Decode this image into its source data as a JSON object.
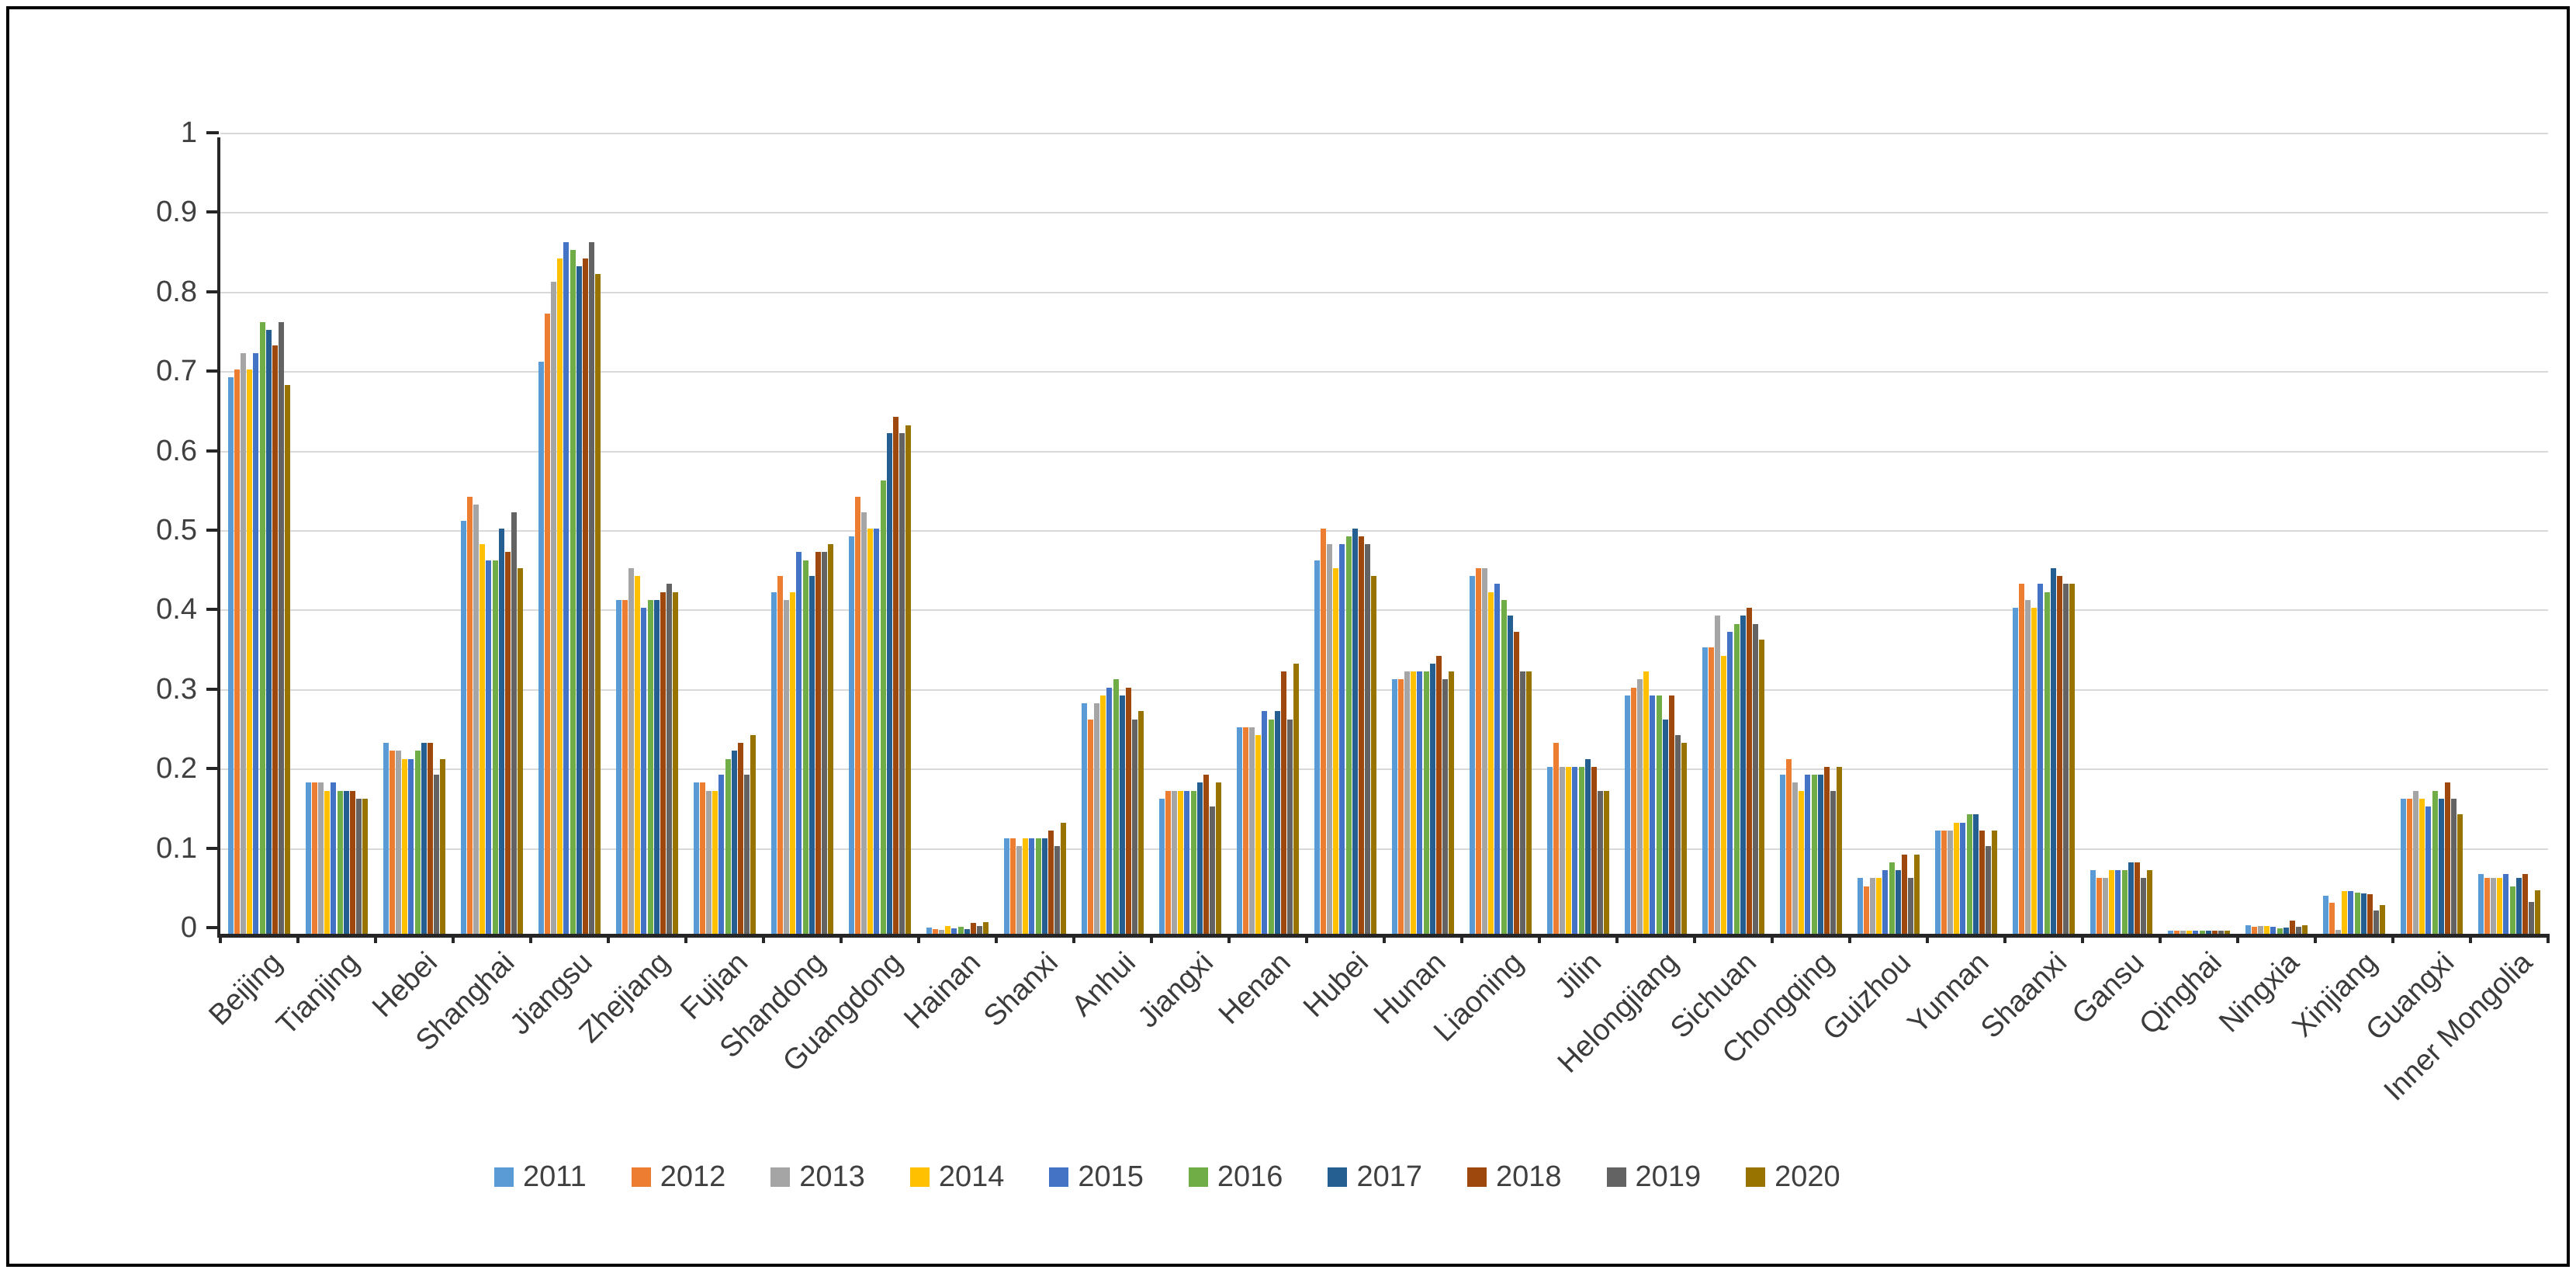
{
  "chart_data": {
    "type": "bar",
    "title": "",
    "xlabel": "",
    "ylabel": "",
    "ylim": [
      0,
      1
    ],
    "grid": true,
    "legend_position": "bottom",
    "ytick_labels": [
      "1",
      "0.9",
      "0.8",
      "0.7",
      "0.6",
      "0.5",
      "0.4",
      "0.3",
      "0.2",
      "0.1",
      "0"
    ],
    "categories": [
      "Beijing",
      "Tianjing",
      "Hebei",
      "Shanghai",
      "Jiangsu",
      "Zhejiang",
      "Fujian",
      "Shandong",
      "Guangdong",
      "Hainan",
      "Shanxi",
      "Anhui",
      "Jiangxi",
      "Henan",
      "Hubei",
      "Hunan",
      "Liaoning",
      "Jilin",
      "Helongjiang",
      "Sichuan",
      "Chongqing",
      "Guizhou",
      "Yunnan",
      "Shaanxi",
      "Gansu",
      "Qinghai",
      "Ningxia",
      "Xinjiang",
      "Guangxi",
      "Inner Mongolia"
    ],
    "series": [
      {
        "name": "2011",
        "color": "#5B9BD5",
        "values": [
          0.7,
          0.19,
          0.24,
          0.52,
          0.72,
          0.42,
          0.19,
          0.43,
          0.5,
          0.008,
          0.12,
          0.29,
          0.17,
          0.26,
          0.47,
          0.32,
          0.45,
          0.21,
          0.3,
          0.36,
          0.2,
          0.07,
          0.13,
          0.41,
          0.08,
          0.004,
          0.011,
          0.048,
          0.17,
          0.075
        ]
      },
      {
        "name": "2012",
        "color": "#ED7D31",
        "values": [
          0.71,
          0.19,
          0.23,
          0.55,
          0.78,
          0.42,
          0.19,
          0.45,
          0.55,
          0.006,
          0.12,
          0.27,
          0.18,
          0.26,
          0.51,
          0.32,
          0.46,
          0.24,
          0.31,
          0.36,
          0.22,
          0.06,
          0.13,
          0.44,
          0.07,
          0.004,
          0.009,
          0.039,
          0.17,
          0.07
        ]
      },
      {
        "name": "2013",
        "color": "#A5A5A5",
        "values": [
          0.73,
          0.19,
          0.23,
          0.54,
          0.82,
          0.46,
          0.18,
          0.42,
          0.53,
          0.005,
          0.11,
          0.29,
          0.18,
          0.26,
          0.49,
          0.33,
          0.46,
          0.21,
          0.32,
          0.4,
          0.19,
          0.07,
          0.13,
          0.42,
          0.07,
          0.004,
          0.01,
          0.005,
          0.18,
          0.07
        ]
      },
      {
        "name": "2014",
        "color": "#FFC000",
        "values": [
          0.71,
          0.18,
          0.22,
          0.49,
          0.85,
          0.45,
          0.18,
          0.43,
          0.51,
          0.01,
          0.12,
          0.3,
          0.18,
          0.25,
          0.46,
          0.33,
          0.43,
          0.21,
          0.33,
          0.35,
          0.18,
          0.07,
          0.14,
          0.41,
          0.08,
          0.004,
          0.01,
          0.054,
          0.17,
          0.07
        ]
      },
      {
        "name": "2015",
        "color": "#4472C4",
        "values": [
          0.73,
          0.19,
          0.22,
          0.47,
          0.87,
          0.41,
          0.2,
          0.48,
          0.51,
          0.007,
          0.12,
          0.31,
          0.18,
          0.28,
          0.49,
          0.33,
          0.44,
          0.21,
          0.3,
          0.38,
          0.2,
          0.08,
          0.14,
          0.44,
          0.08,
          0.004,
          0.009,
          0.054,
          0.16,
          0.075
        ]
      },
      {
        "name": "2016",
        "color": "#70AD47",
        "values": [
          0.77,
          0.18,
          0.23,
          0.47,
          0.86,
          0.42,
          0.22,
          0.47,
          0.57,
          0.009,
          0.12,
          0.32,
          0.18,
          0.27,
          0.5,
          0.33,
          0.42,
          0.21,
          0.3,
          0.39,
          0.2,
          0.09,
          0.15,
          0.43,
          0.08,
          0.004,
          0.007,
          0.052,
          0.18,
          0.06
        ]
      },
      {
        "name": "2017",
        "color": "#255E91",
        "values": [
          0.76,
          0.18,
          0.24,
          0.51,
          0.84,
          0.42,
          0.23,
          0.45,
          0.63,
          0.006,
          0.12,
          0.3,
          0.19,
          0.28,
          0.51,
          0.34,
          0.4,
          0.22,
          0.27,
          0.4,
          0.2,
          0.08,
          0.15,
          0.46,
          0.09,
          0.004,
          0.008,
          0.051,
          0.17,
          0.07
        ]
      },
      {
        "name": "2018",
        "color": "#9E480E",
        "values": [
          0.74,
          0.18,
          0.24,
          0.48,
          0.85,
          0.43,
          0.24,
          0.48,
          0.65,
          0.014,
          0.13,
          0.31,
          0.2,
          0.33,
          0.5,
          0.35,
          0.38,
          0.21,
          0.3,
          0.41,
          0.21,
          0.1,
          0.13,
          0.45,
          0.09,
          0.004,
          0.017,
          0.05,
          0.19,
          0.075
        ]
      },
      {
        "name": "2019",
        "color": "#636363",
        "values": [
          0.77,
          0.17,
          0.2,
          0.53,
          0.87,
          0.44,
          0.2,
          0.48,
          0.63,
          0.01,
          0.11,
          0.27,
          0.16,
          0.27,
          0.49,
          0.32,
          0.33,
          0.18,
          0.25,
          0.39,
          0.18,
          0.07,
          0.11,
          0.44,
          0.07,
          0.004,
          0.009,
          0.029,
          0.17,
          0.04
        ]
      },
      {
        "name": "2020",
        "color": "#997300",
        "values": [
          0.69,
          0.17,
          0.22,
          0.46,
          0.83,
          0.43,
          0.25,
          0.49,
          0.64,
          0.015,
          0.14,
          0.28,
          0.19,
          0.34,
          0.45,
          0.33,
          0.33,
          0.18,
          0.24,
          0.37,
          0.21,
          0.1,
          0.13,
          0.44,
          0.08,
          0.004,
          0.011,
          0.036,
          0.15,
          0.055
        ]
      }
    ]
  }
}
